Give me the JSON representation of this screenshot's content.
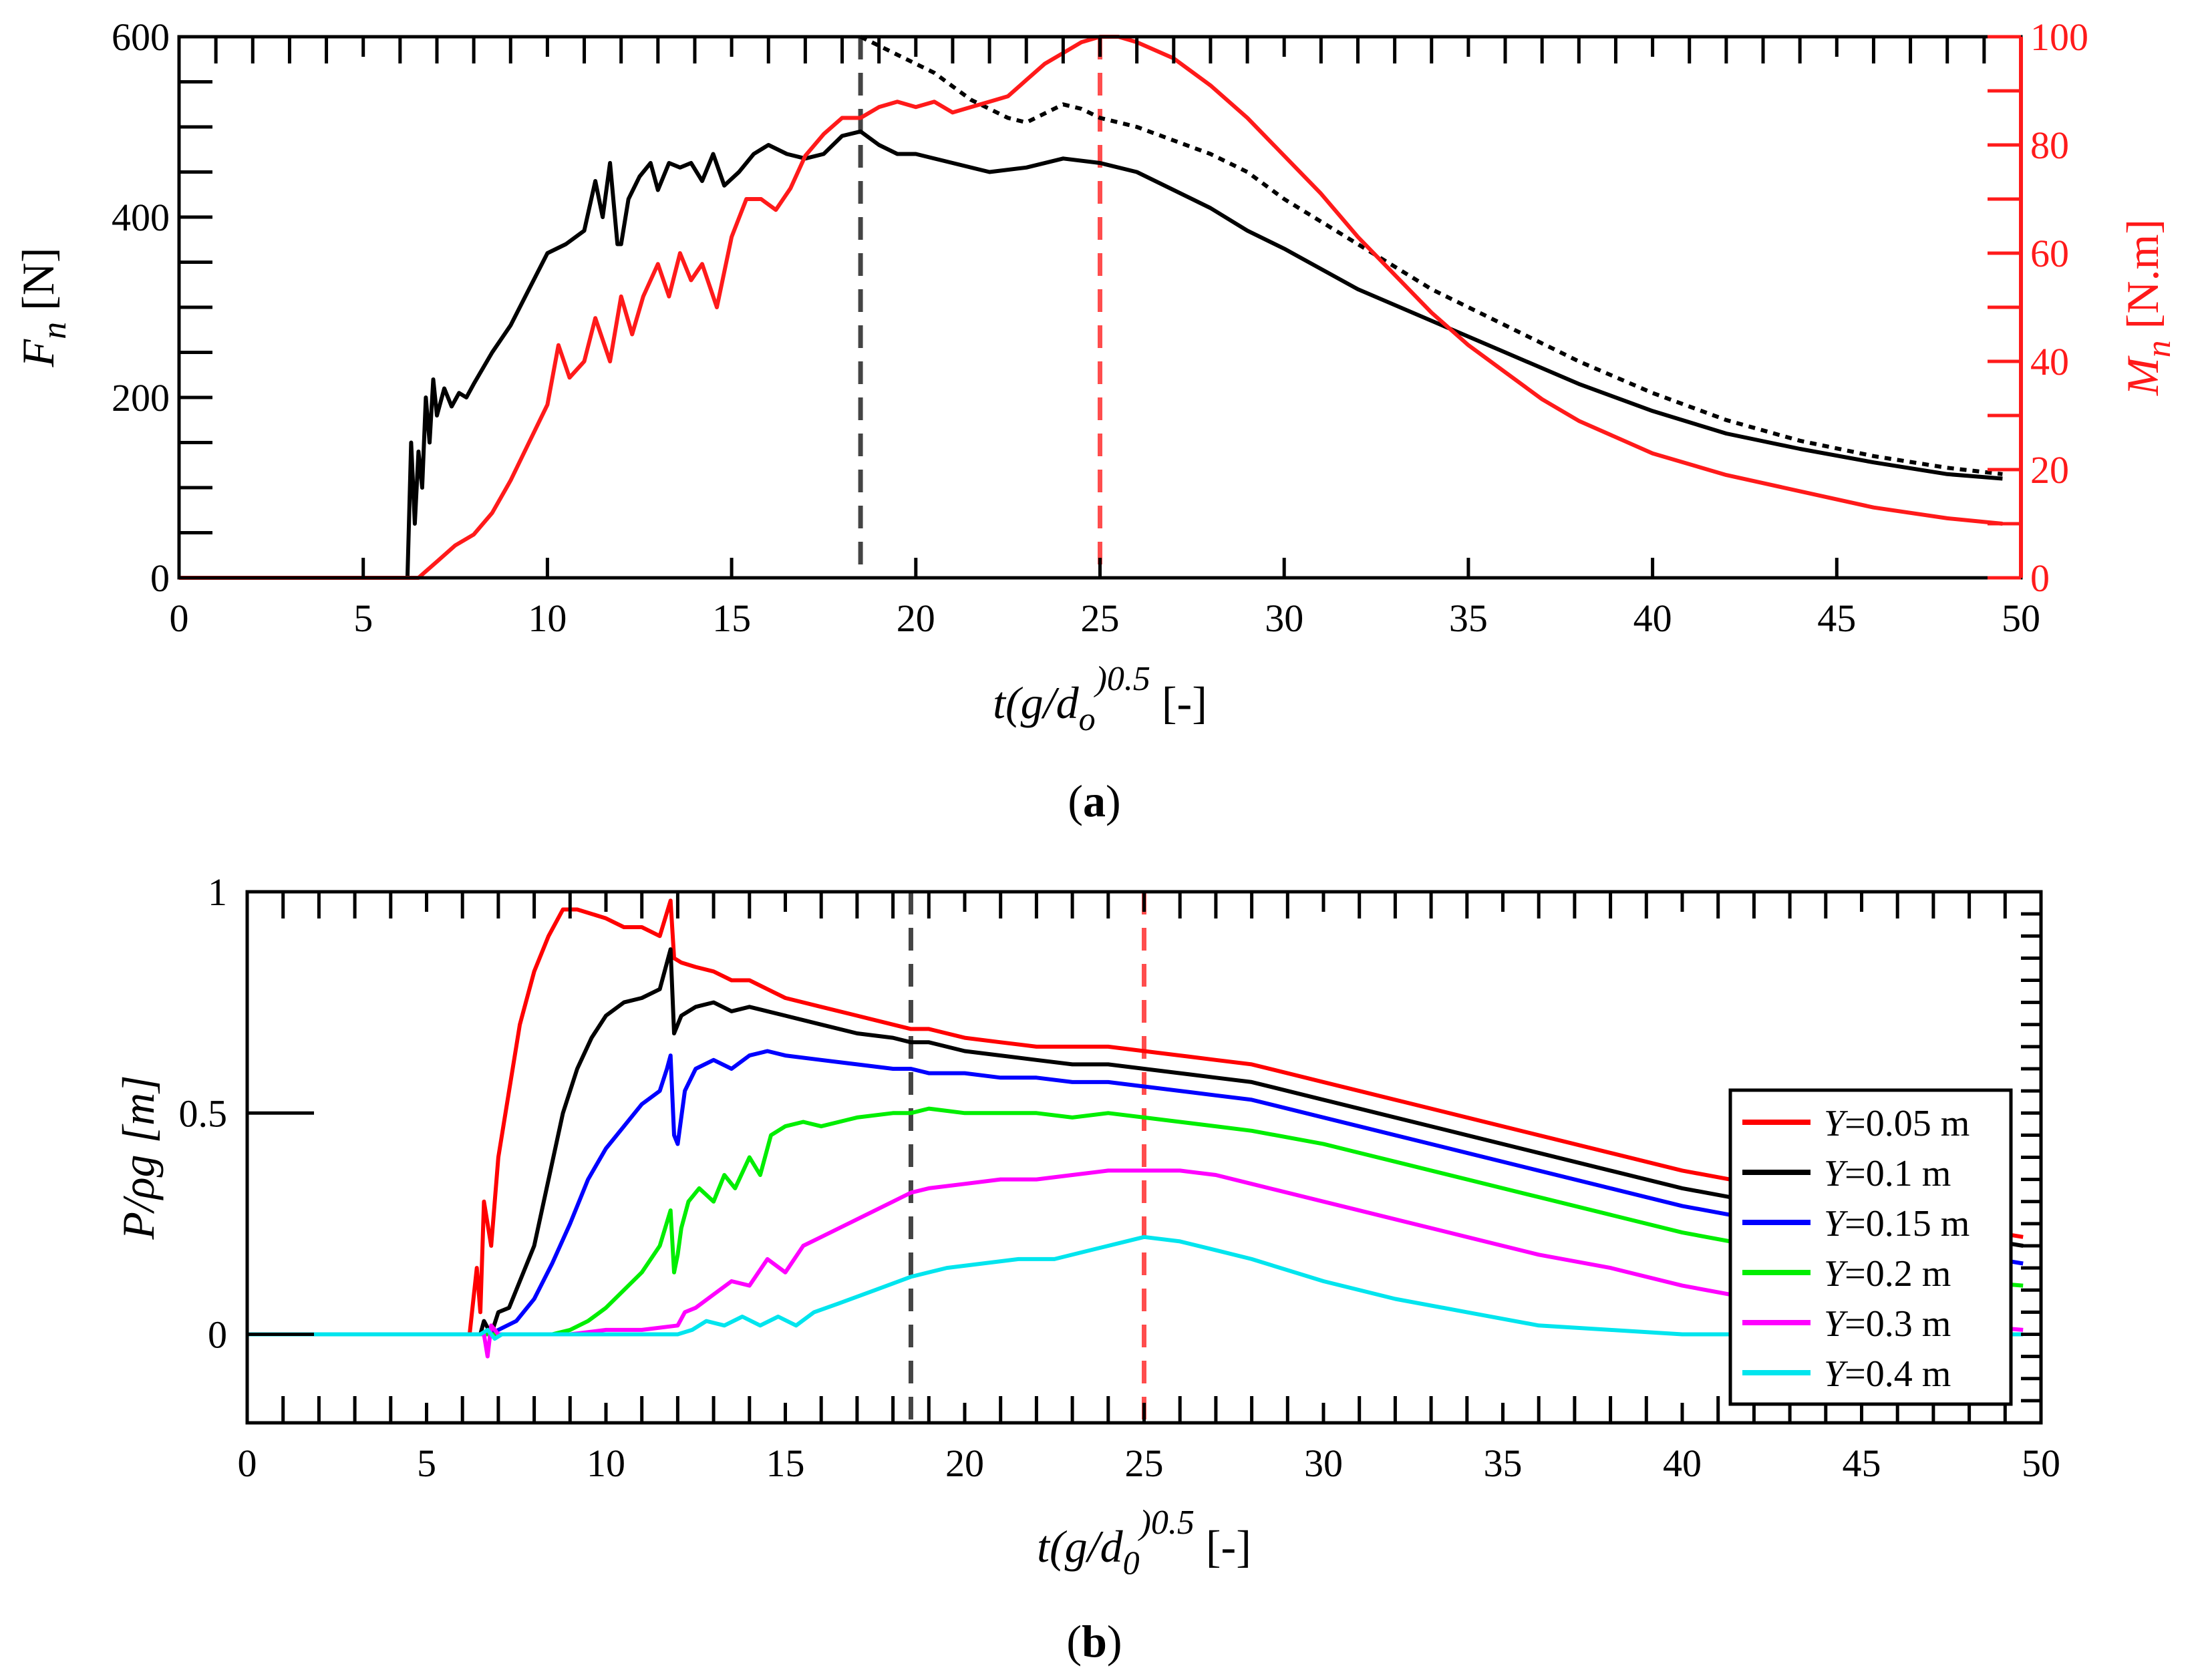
{
  "chart_data": [
    {
      "panel": "a",
      "panel_label": "a",
      "type": "line",
      "x_range": [
        0,
        50
      ],
      "x_ticks": [
        0,
        5,
        10,
        15,
        20,
        25,
        30,
        35,
        40,
        45,
        50
      ],
      "xlabel_main": "t(g/d",
      "xlabel_sub": "o",
      "xlabel_sup": ")0.5",
      "xlabel_tail": " [-]",
      "ylabel_left_main": "F",
      "ylabel_left_sub": "n",
      "ylabel_left_tail": " [N]",
      "ylabel_right_main": "M",
      "ylabel_right_sub": "n",
      "ylabel_right_tail": " [N.m]",
      "y_left_range": [
        0,
        600
      ],
      "y_left_ticks": [
        0,
        200,
        400,
        600
      ],
      "y_right_range": [
        0,
        100
      ],
      "y_right_ticks": [
        0,
        20,
        40,
        60,
        80,
        100
      ],
      "vlines": [
        {
          "x": 18.5,
          "color": "#444444"
        },
        {
          "x": 25.0,
          "color": "#ff4d4d"
        }
      ],
      "series": [
        {
          "name": "Fn",
          "axis": "left",
          "color": "#000000",
          "dash": "solid",
          "x": [
            0,
            6.2,
            6.3,
            6.4,
            6.5,
            6.6,
            6.7,
            6.8,
            6.9,
            7.0,
            7.2,
            7.4,
            7.6,
            7.8,
            8,
            8.5,
            9,
            9.5,
            10,
            10.5,
            11,
            11.3,
            11.5,
            11.7,
            11.9,
            12.0,
            12.2,
            12.5,
            12.8,
            13,
            13.3,
            13.6,
            13.9,
            14.2,
            14.5,
            14.8,
            15.2,
            15.6,
            16,
            16.5,
            17,
            17.5,
            18,
            18.5,
            19,
            19.5,
            20,
            21,
            22,
            23,
            24,
            25,
            26,
            27,
            28,
            29,
            30,
            32,
            34,
            36,
            38,
            40,
            42,
            44,
            46,
            48,
            49.5
          ],
          "y": [
            0,
            0,
            150,
            60,
            140,
            100,
            200,
            150,
            220,
            180,
            210,
            190,
            205,
            200,
            215,
            250,
            280,
            320,
            360,
            370,
            385,
            440,
            400,
            460,
            370,
            370,
            420,
            445,
            460,
            430,
            460,
            455,
            460,
            440,
            470,
            435,
            450,
            470,
            480,
            470,
            465,
            470,
            490,
            495,
            480,
            470,
            470,
            460,
            450,
            455,
            465,
            460,
            450,
            430,
            410,
            385,
            365,
            320,
            285,
            250,
            215,
            185,
            160,
            143,
            128,
            115,
            110
          ]
        },
        {
          "name": "Fn-dotted",
          "axis": "left",
          "color": "#000000",
          "dash": "dotted",
          "x": [
            18.5,
            19,
            19.5,
            20,
            20.5,
            21,
            21.5,
            22,
            22.5,
            23,
            23.5,
            24,
            24.5,
            25,
            26,
            27,
            28,
            29,
            30,
            32,
            34,
            36,
            38,
            40,
            42,
            44,
            46,
            48,
            49.5
          ],
          "y": [
            600,
            590,
            580,
            570,
            560,
            545,
            530,
            520,
            510,
            505,
            515,
            525,
            520,
            510,
            500,
            485,
            470,
            450,
            420,
            370,
            320,
            280,
            240,
            205,
            175,
            152,
            135,
            122,
            115
          ]
        },
        {
          "name": "Mn",
          "axis": "right",
          "color": "#ff1a1a",
          "dash": "solid",
          "x": [
            0,
            6.5,
            7,
            7.5,
            8,
            8.5,
            9,
            9.5,
            10,
            10.3,
            10.6,
            11,
            11.3,
            11.7,
            12,
            12.3,
            12.6,
            13,
            13.3,
            13.6,
            13.9,
            14.2,
            14.6,
            15,
            15.4,
            15.8,
            16.2,
            16.6,
            17,
            17.5,
            18,
            18.5,
            19,
            19.5,
            20,
            20.5,
            21,
            21.5,
            22,
            22.5,
            23,
            23.5,
            24,
            24.5,
            25,
            25.5,
            26,
            27,
            28,
            29,
            30,
            31,
            32,
            33,
            34,
            35,
            36,
            37,
            38,
            40,
            42,
            44,
            46,
            48,
            49.5
          ],
          "y": [
            0,
            0,
            3,
            6,
            8,
            12,
            18,
            25,
            32,
            43,
            37,
            40,
            48,
            40,
            52,
            45,
            52,
            58,
            52,
            60,
            55,
            58,
            50,
            63,
            70,
            70,
            68,
            72,
            78,
            82,
            85,
            85,
            87,
            88,
            87,
            88,
            86,
            87,
            88,
            89,
            92,
            95,
            97,
            99,
            100,
            100,
            99,
            96,
            91,
            85,
            78,
            71,
            63,
            56,
            49,
            43,
            38,
            33,
            29,
            23,
            19,
            16,
            13,
            11,
            10
          ]
        }
      ]
    },
    {
      "panel": "b",
      "panel_label": "b",
      "type": "line",
      "x_range": [
        0,
        50
      ],
      "x_ticks": [
        0,
        5,
        10,
        15,
        20,
        25,
        30,
        35,
        40,
        45,
        50
      ],
      "xlabel_main": "t(g/d",
      "xlabel_sub": "0",
      "xlabel_sup": ")0.5",
      "xlabel_tail": " [-]",
      "ylabel": "P/ρg [m]",
      "y_range": [
        -0.2,
        1
      ],
      "y_ticks": [
        0,
        0.5,
        1
      ],
      "vlines": [
        {
          "x": 18.5,
          "color": "#444444"
        },
        {
          "x": 25.0,
          "color": "#ff4d4d"
        }
      ],
      "legend_position": "right-middle",
      "series": [
        {
          "name": "Y=0.05 m",
          "legend_var": "Y",
          "legend_value": "=0.05 m",
          "color": "#ff0000",
          "x": [
            0,
            6.2,
            6.4,
            6.5,
            6.6,
            6.8,
            7,
            7.3,
            7.6,
            8,
            8.4,
            8.8,
            9.2,
            9.6,
            10,
            10.5,
            11,
            11.5,
            11.8,
            11.9,
            12.1,
            12.5,
            13,
            13.5,
            14,
            14.5,
            15,
            16,
            17,
            18,
            18.5,
            19,
            20,
            21,
            22,
            23,
            24,
            25,
            26,
            27,
            28,
            30,
            32,
            34,
            36,
            38,
            40,
            42,
            44,
            46,
            48,
            49.5
          ],
          "y": [
            0,
            0,
            0.15,
            0.05,
            0.3,
            0.2,
            0.4,
            0.55,
            0.7,
            0.82,
            0.9,
            0.96,
            0.96,
            0.95,
            0.94,
            0.92,
            0.92,
            0.9,
            0.98,
            0.85,
            0.84,
            0.83,
            0.82,
            0.8,
            0.8,
            0.78,
            0.76,
            0.74,
            0.72,
            0.7,
            0.69,
            0.69,
            0.67,
            0.66,
            0.65,
            0.65,
            0.65,
            0.64,
            0.63,
            0.62,
            0.61,
            0.57,
            0.53,
            0.49,
            0.45,
            0.41,
            0.37,
            0.34,
            0.3,
            0.27,
            0.24,
            0.22
          ]
        },
        {
          "name": "Y=0.1 m",
          "legend_var": "Y",
          "legend_value": "=0.1 m",
          "color": "#000000",
          "x": [
            0,
            6.5,
            6.6,
            6.8,
            7,
            7.3,
            7.6,
            8,
            8.4,
            8.8,
            9.2,
            9.6,
            10,
            10.5,
            11,
            11.5,
            11.8,
            11.9,
            12.1,
            12.5,
            13,
            13.5,
            14,
            14.5,
            15,
            16,
            17,
            18,
            18.5,
            19,
            20,
            21,
            22,
            23,
            24,
            25,
            26,
            27,
            28,
            30,
            32,
            34,
            36,
            38,
            40,
            42,
            44,
            46,
            48,
            49.5
          ],
          "y": [
            0,
            0,
            0.03,
            0.0,
            0.05,
            0.06,
            0.12,
            0.2,
            0.35,
            0.5,
            0.6,
            0.67,
            0.72,
            0.75,
            0.76,
            0.78,
            0.87,
            0.68,
            0.72,
            0.74,
            0.75,
            0.73,
            0.74,
            0.73,
            0.72,
            0.7,
            0.68,
            0.67,
            0.66,
            0.66,
            0.64,
            0.63,
            0.62,
            0.61,
            0.61,
            0.6,
            0.59,
            0.58,
            0.57,
            0.53,
            0.49,
            0.45,
            0.41,
            0.37,
            0.33,
            0.3,
            0.27,
            0.24,
            0.22,
            0.2
          ]
        },
        {
          "name": "Y=0.15 m",
          "legend_var": "Y",
          "legend_value": "=0.15 m",
          "color": "#0000ff",
          "x": [
            0,
            6.8,
            7,
            7.5,
            8,
            8.5,
            9,
            9.5,
            10,
            10.5,
            11,
            11.5,
            11.7,
            11.8,
            11.9,
            12.0,
            12.2,
            12.5,
            13,
            13.5,
            14,
            14.5,
            15,
            16,
            17,
            18,
            18.5,
            19,
            20,
            21,
            22,
            23,
            24,
            25,
            26,
            27,
            28,
            30,
            32,
            34,
            36,
            38,
            40,
            42,
            44,
            46,
            48,
            49.5
          ],
          "y": [
            0,
            0,
            0.01,
            0.03,
            0.08,
            0.16,
            0.25,
            0.35,
            0.42,
            0.47,
            0.52,
            0.55,
            0.6,
            0.63,
            0.45,
            0.43,
            0.55,
            0.6,
            0.62,
            0.6,
            0.63,
            0.64,
            0.63,
            0.62,
            0.61,
            0.6,
            0.6,
            0.59,
            0.59,
            0.58,
            0.58,
            0.57,
            0.57,
            0.56,
            0.55,
            0.54,
            0.53,
            0.49,
            0.45,
            0.41,
            0.37,
            0.33,
            0.29,
            0.26,
            0.23,
            0.2,
            0.18,
            0.16
          ]
        },
        {
          "name": "Y=0.2 m",
          "legend_var": "Y",
          "legend_value": "=0.2 m",
          "color": "#00ee00",
          "x": [
            0,
            8.5,
            9,
            9.5,
            10,
            10.5,
            11,
            11.5,
            11.8,
            11.9,
            12.0,
            12.1,
            12.3,
            12.6,
            13,
            13.3,
            13.6,
            14,
            14.3,
            14.6,
            15,
            15.5,
            16,
            17,
            18,
            18.5,
            19,
            20,
            21,
            22,
            23,
            24,
            25,
            26,
            27,
            28,
            30,
            32,
            34,
            36,
            38,
            40,
            42,
            44,
            46,
            48,
            49.5
          ],
          "y": [
            0,
            0,
            0.01,
            0.03,
            0.06,
            0.1,
            0.14,
            0.2,
            0.28,
            0.14,
            0.18,
            0.24,
            0.3,
            0.33,
            0.3,
            0.36,
            0.33,
            0.4,
            0.36,
            0.45,
            0.47,
            0.48,
            0.47,
            0.49,
            0.5,
            0.5,
            0.51,
            0.5,
            0.5,
            0.5,
            0.49,
            0.5,
            0.49,
            0.48,
            0.47,
            0.46,
            0.43,
            0.39,
            0.35,
            0.31,
            0.27,
            0.23,
            0.2,
            0.17,
            0.14,
            0.12,
            0.11
          ]
        },
        {
          "name": "Y=0.3 m",
          "legend_var": "Y",
          "legend_value": "=0.3 m",
          "color": "#ff00ff",
          "x": [
            0,
            6.6,
            6.7,
            6.8,
            7,
            7.5,
            8,
            9,
            10,
            11,
            12,
            12.2,
            12.5,
            13,
            13.5,
            14,
            14.5,
            15,
            15.5,
            16,
            17,
            18,
            18.5,
            19,
            20,
            21,
            22,
            23,
            24,
            25,
            26,
            27,
            28,
            30,
            32,
            34,
            36,
            38,
            40,
            42,
            44,
            46,
            48,
            49.5
          ],
          "y": [
            0,
            0,
            -0.05,
            0.02,
            0.0,
            0.0,
            0.0,
            0.0,
            0.01,
            0.01,
            0.02,
            0.05,
            0.06,
            0.09,
            0.12,
            0.11,
            0.17,
            0.14,
            0.2,
            0.22,
            0.26,
            0.3,
            0.32,
            0.33,
            0.34,
            0.35,
            0.35,
            0.36,
            0.37,
            0.37,
            0.37,
            0.36,
            0.34,
            0.3,
            0.26,
            0.22,
            0.18,
            0.15,
            0.11,
            0.08,
            0.05,
            0.03,
            0.02,
            0.01
          ]
        },
        {
          "name": "Y=0.4 m",
          "legend_var": "Y",
          "legend_value": "=0.4 m",
          "color": "#00e5ee",
          "x": [
            0,
            6.5,
            6.7,
            6.9,
            7.1,
            7.5,
            8,
            9,
            10,
            11,
            12,
            12.4,
            12.8,
            13.3,
            13.8,
            14.3,
            14.8,
            15.3,
            15.8,
            16.5,
            17.5,
            18.5,
            19.5,
            20.5,
            21.5,
            22.5,
            23.5,
            24.5,
            25,
            26,
            27,
            28,
            30,
            32,
            34,
            36,
            38,
            40,
            42,
            44,
            46,
            48,
            49.5
          ],
          "y": [
            0,
            0,
            0.01,
            -0.01,
            0.0,
            0.0,
            0.0,
            0.0,
            0.0,
            0.0,
            0.0,
            0.01,
            0.03,
            0.02,
            0.04,
            0.02,
            0.04,
            0.02,
            0.05,
            0.07,
            0.1,
            0.13,
            0.15,
            0.16,
            0.17,
            0.17,
            0.19,
            0.21,
            0.22,
            0.21,
            0.19,
            0.17,
            0.12,
            0.08,
            0.05,
            0.02,
            0.01,
            0.0,
            0.0,
            0.0,
            0.0,
            0.0,
            0.0
          ]
        }
      ]
    }
  ]
}
